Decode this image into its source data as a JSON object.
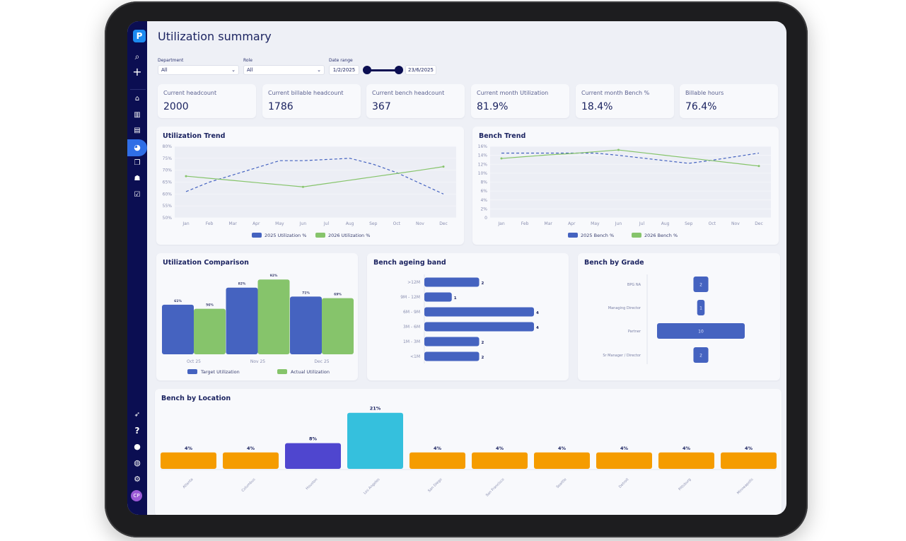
{
  "page": {
    "title": "Utilization summary"
  },
  "sidebar": {
    "logo": "P",
    "avatar": "CP",
    "top_icons": [
      "search-icon",
      "plus-icon"
    ],
    "nav_icons": [
      "store-icon",
      "book-icon",
      "report-icon",
      "pie-chart-icon",
      "documents-icon",
      "team-icon",
      "calendar-check-icon"
    ],
    "bottom_icons": [
      "rocket-icon",
      "help-icon",
      "chat-icon",
      "globe-icon",
      "settings-icon"
    ]
  },
  "filters": {
    "department_label": "Department",
    "department_value": "All",
    "role_label": "Role",
    "role_value": "All",
    "date_label": "Date range",
    "date_start": "1/2/2025",
    "date_end": "23/6/2025"
  },
  "kpis": [
    {
      "label": "Current headcount",
      "value": "2000"
    },
    {
      "label": "Current billable headcount",
      "value": "1786"
    },
    {
      "label": "Current bench headcount",
      "value": "367"
    },
    {
      "label": "Current month Utilization",
      "value": "81.9%"
    },
    {
      "label": "Current month Bench %",
      "value": "18.4%"
    },
    {
      "label": "Billable hours",
      "value": "76.4%"
    }
  ],
  "colors": {
    "blue": "#4563c0",
    "green": "#86c46b",
    "orange": "#f59c00",
    "purple": "#4f46cf",
    "cyan": "#35c0dd"
  },
  "chart_data": [
    {
      "id": "util_trend",
      "type": "line",
      "title": "Utilization Trend",
      "categories": [
        "Jan",
        "Feb",
        "Mar",
        "Apr",
        "May",
        "Jun",
        "Jul",
        "Aug",
        "Sep",
        "Oct",
        "Nov",
        "Dec"
      ],
      "yticks": [
        "80%",
        "75%",
        "70%",
        "65%",
        "60%",
        "55%",
        "50%"
      ],
      "ylim": [
        50,
        80
      ],
      "series": [
        {
          "name": "2025 Utilization %",
          "values": [
            61,
            65,
            68,
            71,
            74,
            74,
            74.5,
            75,
            72.5,
            69,
            64.5,
            60
          ],
          "dashed": true
        },
        {
          "name": "2026 Utilization %",
          "values": [
            67.5,
            66.6,
            65.7,
            64.8,
            63.9,
            63,
            64.4,
            65.8,
            67.2,
            68.6,
            70,
            71.5
          ]
        }
      ]
    },
    {
      "id": "bench_trend",
      "type": "line",
      "title": "Bench Trend",
      "categories": [
        "Jan",
        "Feb",
        "Mar",
        "Apr",
        "May",
        "Jun",
        "Jul",
        "Aug",
        "Sep",
        "Oct",
        "Nov",
        "Dec"
      ],
      "yticks": [
        "16%",
        "14%",
        "12%",
        "10%",
        "8%",
        "6%",
        "4%",
        "2%",
        "0"
      ],
      "ylim": [
        0,
        16
      ],
      "series": [
        {
          "name": "2025 Bench %",
          "values": [
            14.5,
            14.5,
            14.5,
            14.5,
            14.5,
            14,
            13.4,
            12.8,
            12.2,
            12.9,
            13.7,
            14.5
          ],
          "dashed": true
        },
        {
          "name": "2026 Bench %",
          "values": [
            13.3,
            13.7,
            14.1,
            14.4,
            14.8,
            15.2,
            14.6,
            14,
            13.4,
            12.8,
            12.2,
            11.6
          ]
        }
      ]
    },
    {
      "id": "util_comparison",
      "type": "bar",
      "title": "Utilization Comparison",
      "categories": [
        "Oct 25",
        "Nov 25",
        "Dec 25"
      ],
      "series": [
        {
          "name": "Target Utilization",
          "values": [
            61,
            82,
            71
          ],
          "labels": [
            "61%",
            "82%",
            "71%"
          ]
        },
        {
          "name": "Actual Utilization",
          "values": [
            56,
            92,
            69
          ],
          "labels": [
            "56%",
            "92%",
            "69%"
          ]
        }
      ]
    },
    {
      "id": "bench_ageing",
      "type": "bar",
      "orientation": "horizontal",
      "title": "Bench ageing band",
      "categories": [
        ">12M",
        "9M - 12M",
        "6M - 9M",
        "3M - 6M",
        "1M - 3M",
        "<1M"
      ],
      "values": [
        2,
        1,
        4,
        4,
        2,
        2
      ]
    },
    {
      "id": "bench_grade",
      "type": "bar",
      "orientation": "funnel",
      "title": "Bench by Grade",
      "categories": [
        "BPG NA",
        "Managing Director",
        "Partner",
        "Sr Manager / Director"
      ],
      "values": [
        2,
        1,
        10,
        2
      ]
    },
    {
      "id": "bench_location",
      "type": "bar",
      "title": "Bench by Location",
      "categories": [
        "Atlanta",
        "Columbus",
        "Houston",
        "Los Angeles",
        "San Diego",
        "San Francisco",
        "Seattle",
        "Detroit",
        "Pittsburg",
        "Minneapolis"
      ],
      "values": [
        4,
        4,
        8,
        21,
        4,
        4,
        4,
        4,
        4,
        4
      ],
      "labels": [
        "4%",
        "4%",
        "8%",
        "21%",
        "4%",
        "4%",
        "4%",
        "4%",
        "4%",
        "4%"
      ]
    }
  ]
}
